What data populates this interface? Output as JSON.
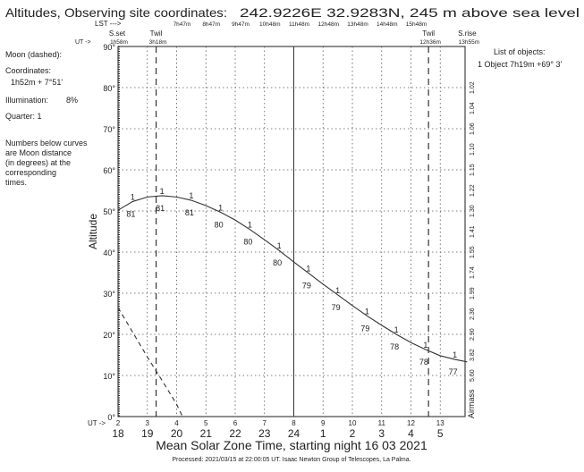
{
  "header": {
    "title": "Altitudes, Observing site coordinates:",
    "site": "242.9226E  32.9283N,  245 m above sea level",
    "lst_label": "LST --->",
    "lst_ticks": [
      {
        "ut": 4,
        "label": "7h47m"
      },
      {
        "ut": 5,
        "label": "8h47m"
      },
      {
        "ut": 6,
        "label": "9h47m"
      },
      {
        "ut": 7,
        "label": "10h48m"
      },
      {
        "ut": 8,
        "label": "11h48m"
      },
      {
        "ut": 9,
        "label": "12h48m"
      },
      {
        "ut": 10,
        "label": "13h48m"
      },
      {
        "ut": 11,
        "label": "14h48m"
      },
      {
        "ut": 12,
        "label": "15h48m"
      }
    ],
    "ut_label": "UT ->",
    "events": [
      {
        "name": "S.set",
        "time": "1h58m",
        "ut": 1.97
      },
      {
        "name": "Twil",
        "time": "3h18m",
        "ut": 3.3
      },
      {
        "name": "Twil",
        "time": "12h36m",
        "ut": 12.6
      },
      {
        "name": "S.rise",
        "time": "13h55m",
        "ut": 13.92
      }
    ]
  },
  "moon_info": {
    "title": "Moon (dashed):",
    "coords_label": "Coordinates:",
    "coords": "1h52m + 7°51'",
    "illumination_label": "Illumination:",
    "illumination": "8%",
    "quarter": "Quarter: 1",
    "note": [
      "Numbers below curves",
      "are Moon distance",
      "(in degrees) at the",
      "corresponding",
      "times."
    ]
  },
  "objects": {
    "title": "List of objects:",
    "items": [
      {
        "index": "1",
        "name": "Object",
        "coords": "7h19m +69° 3'"
      }
    ]
  },
  "footer": {
    "processed": "Processed: 2021/03/15 at 22:00:05 UT. Isaac  Newton Group of Telescopes, La Palma."
  },
  "colors": {
    "object": "#333333",
    "label_index": "#ff00ff",
    "moon_distance": "#3333ff",
    "grid": "#555555"
  },
  "chart_data": {
    "type": "line",
    "xlabel": "Mean Solar Zone Time, starting night 16 03 2021",
    "ylabel": "Altitude",
    "y2label": "Airmass",
    "xlim_ut": [
      2,
      13.92
    ],
    "ylim": [
      0,
      90
    ],
    "grid": true,
    "ut_ticks": [
      "2",
      "3",
      "4",
      "5",
      "6",
      "7",
      "8",
      "9",
      "10",
      "11",
      "12",
      "13"
    ],
    "local_ticks": [
      "18",
      "19",
      "20",
      "21",
      "22",
      "23",
      "24",
      "1",
      "2",
      "3",
      "4",
      "5"
    ],
    "ut_tick_prefix": "UT ->",
    "y_ticks": [
      "0°",
      "10°",
      "20°",
      "30°",
      "40°",
      "50°",
      "60°",
      "70°",
      "80°",
      "90°"
    ],
    "airmass_ticks": [
      {
        "alt": 80,
        "label": "1.02"
      },
      {
        "alt": 75,
        "label": "1.04"
      },
      {
        "alt": 70,
        "label": "1.06"
      },
      {
        "alt": 65,
        "label": "1.10"
      },
      {
        "alt": 60,
        "label": "1.15"
      },
      {
        "alt": 55,
        "label": "1.22"
      },
      {
        "alt": 50,
        "label": "1.30"
      },
      {
        "alt": 45,
        "label": "1.41"
      },
      {
        "alt": 40,
        "label": "1.55"
      },
      {
        "alt": 35,
        "label": "1.74"
      },
      {
        "alt": 30,
        "label": "1.99"
      },
      {
        "alt": 25,
        "label": "2.36"
      },
      {
        "alt": 20,
        "label": "2.90"
      },
      {
        "alt": 15,
        "label": "3.82"
      },
      {
        "alt": 10,
        "label": "5.60"
      }
    ],
    "series": [
      {
        "name": "1",
        "style": "solid",
        "ut": [
          2,
          2.5,
          3,
          3.5,
          4,
          4.5,
          5,
          5.5,
          6,
          6.5,
          7,
          7.5,
          8,
          8.5,
          9,
          9.5,
          10,
          10.5,
          11,
          11.5,
          12,
          12.5,
          13,
          13.5,
          13.92
        ],
        "alt": [
          50.2,
          52.3,
          53.4,
          53.7,
          53.4,
          52.6,
          51.3,
          49.7,
          47.8,
          45.5,
          43.0,
          40.4,
          37.6,
          34.9,
          32.2,
          29.6,
          27.0,
          24.5,
          22.2,
          20.0,
          18.0,
          16.3,
          14.8,
          13.9,
          13.3
        ],
        "moon_distance_labels": [
          {
            "ut": 2.5,
            "value": "81"
          },
          {
            "ut": 3.5,
            "value": "81"
          },
          {
            "ut": 4.5,
            "value": "81"
          },
          {
            "ut": 5.5,
            "value": "80"
          },
          {
            "ut": 6.5,
            "value": "80"
          },
          {
            "ut": 7.5,
            "value": "80"
          },
          {
            "ut": 8.5,
            "value": "79"
          },
          {
            "ut": 9.5,
            "value": "79"
          },
          {
            "ut": 10.5,
            "value": "79"
          },
          {
            "ut": 11.5,
            "value": "78"
          },
          {
            "ut": 12.5,
            "value": "78"
          },
          {
            "ut": 13.5,
            "value": "77"
          }
        ]
      },
      {
        "name": "Moon",
        "style": "dashed",
        "ut": [
          2,
          2.5,
          3,
          3.5,
          4,
          4.2
        ],
        "alt": [
          26.5,
          20.5,
          14.5,
          8.8,
          3.0,
          0
        ]
      }
    ]
  }
}
